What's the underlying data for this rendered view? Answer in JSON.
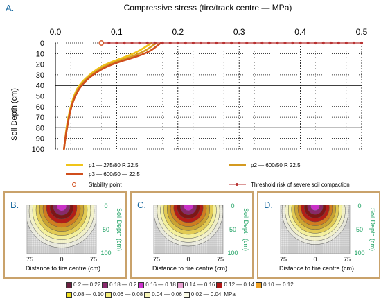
{
  "panel_letters": {
    "a": "A.",
    "b": "B.",
    "c": "C.",
    "d": "D."
  },
  "chart_data": {
    "type": "line",
    "title": "Compressive stress (tire/track centre — MPa)",
    "xlabel": "Compressive stress (tire/track centre — MPa)",
    "ylabel": "Soil Depth (cm)",
    "xlim": [
      0,
      0.5
    ],
    "ylim": [
      0,
      100
    ],
    "y_inverted": true,
    "x_ticks": [
      "0.0",
      "0.1",
      "0.2",
      "0.3",
      "0.4",
      "0.5"
    ],
    "y_ticks": [
      "0",
      "10",
      "20",
      "30",
      "40",
      "50",
      "60",
      "70",
      "80",
      "90",
      "100"
    ],
    "grid": true,
    "legend_placement": "bottom",
    "series": [
      {
        "name": "p1 — 275/80 R 22.5",
        "color": "#f0c419",
        "x": [
          0.157,
          0.13,
          0.08,
          0.055,
          0.038,
          0.03,
          0.025,
          0.021,
          0.018,
          0.016,
          0.014
        ],
        "y": [
          0,
          10,
          20,
          30,
          40,
          50,
          60,
          70,
          80,
          90,
          100
        ]
      },
      {
        "name": "p2 — 600/50 R 22.5",
        "color": "#d49a20",
        "x": [
          0.165,
          0.14,
          0.085,
          0.058,
          0.04,
          0.031,
          0.026,
          0.022,
          0.019,
          0.016,
          0.014
        ],
        "y": [
          0,
          10,
          20,
          30,
          40,
          50,
          60,
          70,
          80,
          90,
          100
        ]
      },
      {
        "name": "p3 — 600/50 — 22.5",
        "color": "#d04e1c",
        "x": [
          0.172,
          0.15,
          0.09,
          0.06,
          0.042,
          0.032,
          0.026,
          0.022,
          0.019,
          0.016,
          0.014
        ],
        "y": [
          0,
          10,
          20,
          30,
          40,
          50,
          60,
          70,
          80,
          90,
          100
        ]
      }
    ],
    "stability_point": {
      "label": "Stability point",
      "x": 0.075,
      "y": 0
    },
    "threshold": {
      "label": "Threshold risk of severe soil compaction",
      "depth": 0,
      "x_from": 0.075,
      "x_to": 0.5
    }
  },
  "contour_panels": [
    {
      "id": "B",
      "xlabel": "Distance to tire centre (cm)",
      "ylabel": "Soil Depth (cm)",
      "x_ticks": [
        "75",
        "0",
        "75"
      ],
      "y_ticks": [
        "0",
        "50",
        "100"
      ]
    },
    {
      "id": "C",
      "xlabel": "Distance to tire centre (cm)",
      "ylabel": "Soil Depth (cm)",
      "x_ticks": [
        "75",
        "0",
        "75"
      ],
      "y_ticks": [
        "0",
        "50",
        "100"
      ]
    },
    {
      "id": "D",
      "xlabel": "Distance to tire centre (cm)",
      "ylabel": "Soil Depth (cm)",
      "x_ticks": [
        "75",
        "0",
        "75"
      ],
      "y_ticks": [
        "0",
        "50",
        "100"
      ]
    }
  ],
  "colorbar": {
    "unit": "MPa",
    "rows": [
      [
        {
          "label": "0.2 — 0.22",
          "color": "#6b1f3f"
        },
        {
          "label": "0.18 — 0.2",
          "color": "#8a2a6e"
        },
        {
          "label": "0.16 — 0.18",
          "color": "#cc33cc"
        },
        {
          "label": "0.14 — 0.16",
          "color": "#e8a0d0"
        },
        {
          "label": "0.12 — 0.14",
          "color": "#b01818"
        },
        {
          "label": "0.10 — 0.12",
          "color": "#f0a020"
        }
      ],
      [
        {
          "label": "0.08 — 0.10",
          "color": "#f0e020"
        },
        {
          "label": "0.06 — 0.08",
          "color": "#f5f07a"
        },
        {
          "label": "0.04 — 0.06",
          "color": "#f8f6b8"
        },
        {
          "label": "0.02 — 0.04",
          "color": "#fbfbe6"
        }
      ]
    ]
  }
}
